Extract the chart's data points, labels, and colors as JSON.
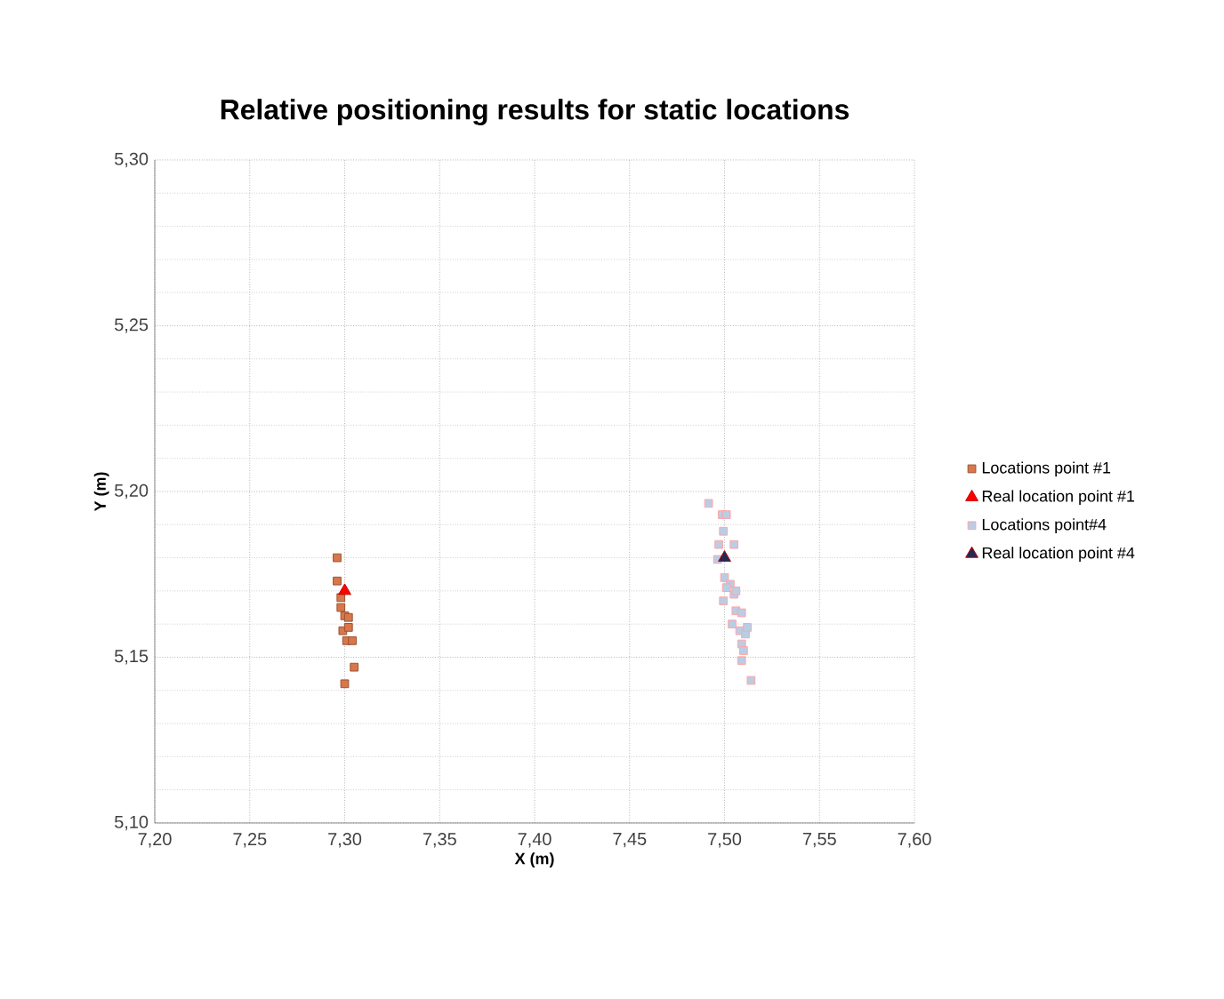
{
  "chart_data": {
    "type": "scatter",
    "title": "Relative positioning results for static locations",
    "xlabel": "X (m)",
    "ylabel": "Y (m)",
    "xlim": [
      7.2,
      7.6
    ],
    "ylim": [
      5.1,
      5.3
    ],
    "xticks": [
      {
        "value": 7.2,
        "label": "7,20"
      },
      {
        "value": 7.25,
        "label": "7,25"
      },
      {
        "value": 7.3,
        "label": "7,30"
      },
      {
        "value": 7.35,
        "label": "7,35"
      },
      {
        "value": 7.4,
        "label": "7,40"
      },
      {
        "value": 7.45,
        "label": "7,45"
      },
      {
        "value": 7.5,
        "label": "7,50"
      },
      {
        "value": 7.55,
        "label": "7,55"
      },
      {
        "value": 7.6,
        "label": "7,60"
      }
    ],
    "yticks": [
      {
        "value": 5.1,
        "label": "5,10"
      },
      {
        "value": 5.15,
        "label": "5,15"
      },
      {
        "value": 5.2,
        "label": "5,20"
      },
      {
        "value": 5.25,
        "label": "5,25"
      },
      {
        "value": 5.3,
        "label": "5,30"
      }
    ],
    "grid": true,
    "legend": "right",
    "series": [
      {
        "name": "Locations point #1",
        "color": "#d9774a",
        "marker": "square",
        "x": [
          7.296,
          7.296,
          7.298,
          7.3,
          7.302,
          7.299,
          7.302,
          7.301,
          7.304,
          7.305,
          7.3,
          7.298
        ],
        "values": [
          5.18,
          5.173,
          5.165,
          5.1625,
          5.162,
          5.158,
          5.159,
          5.155,
          5.155,
          5.147,
          5.142,
          5.168
        ]
      },
      {
        "name": "Real location point #1",
        "color": "#ff0000",
        "marker": "triangle",
        "x": [
          7.3
        ],
        "values": [
          5.17
        ]
      },
      {
        "name": "Locations point#4",
        "color": "#b9cde5",
        "marker": "square",
        "x": [
          7.4916,
          7.4988,
          7.501,
          7.4994,
          7.497,
          7.505,
          7.4963,
          7.5,
          7.503,
          7.4994,
          7.505,
          7.506,
          7.509,
          7.504,
          7.508,
          7.511,
          7.512,
          7.509,
          7.51,
          7.509,
          7.514,
          7.501,
          7.506
        ],
        "values": [
          5.1964,
          5.193,
          5.193,
          5.188,
          5.184,
          5.184,
          5.1795,
          5.174,
          5.172,
          5.167,
          5.169,
          5.164,
          5.1634,
          5.16,
          5.158,
          5.157,
          5.159,
          5.154,
          5.152,
          5.149,
          5.143,
          5.171,
          5.17
        ]
      },
      {
        "name": "Real location point #4",
        "color": "#1f2a55",
        "marker": "triangle",
        "x": [
          7.5
        ],
        "values": [
          5.18
        ]
      }
    ]
  }
}
